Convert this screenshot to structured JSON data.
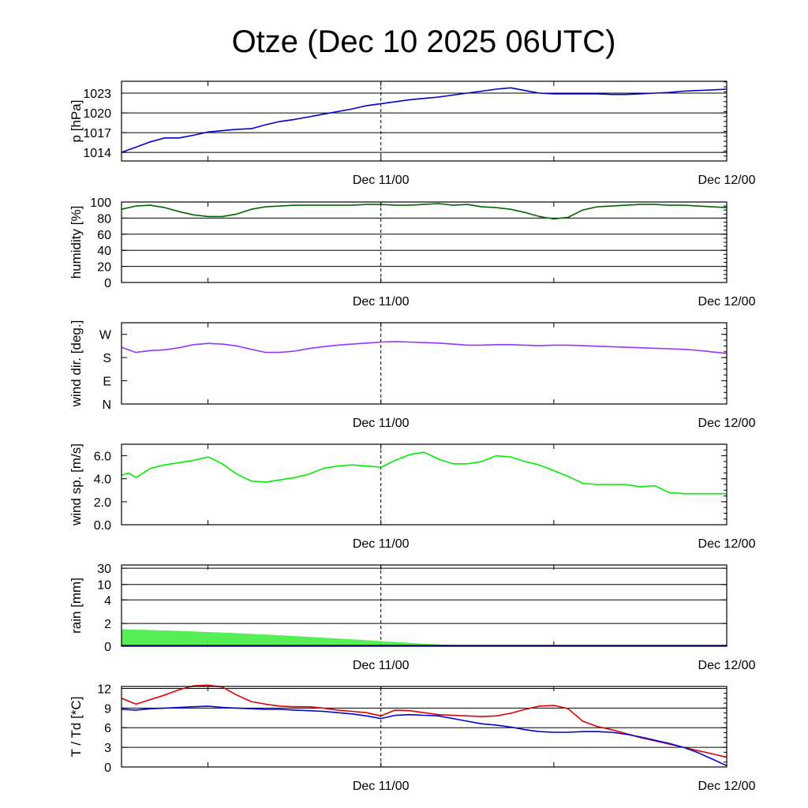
{
  "title": "Otze (Dec 10 2025 06UTC)",
  "x_axis": {
    "labels": [
      "Dec 11/00",
      "Dec 12/00"
    ],
    "start_hour": 6,
    "end_hour": 48,
    "label_hours": [
      24,
      48
    ],
    "minor_tick_hours": [
      12,
      36
    ]
  },
  "chart_data": [
    {
      "type": "line",
      "ylabel": "p [hPa]",
      "ylim": [
        1012.7,
        1024.8
      ],
      "ticks": [
        1014,
        1017,
        1020,
        1023
      ],
      "tick_labels": [
        "1014",
        "1017",
        "1020",
        "1023"
      ],
      "grid": true,
      "series": [
        {
          "color": "#0000cc",
          "x": [
            6,
            6.5,
            7,
            7.5,
            8,
            9,
            10,
            11,
            12,
            13,
            14,
            15,
            16,
            17,
            18,
            19,
            20,
            21,
            22,
            23,
            24,
            25,
            26,
            27,
            28,
            29,
            30,
            31,
            32,
            33,
            34,
            35,
            36,
            37,
            38,
            39,
            40,
            41,
            42,
            43,
            44,
            45,
            46,
            47,
            48
          ],
          "y": [
            1014.0,
            1014.4,
            1014.8,
            1015.2,
            1015.6,
            1016.2,
            1016.2,
            1016.6,
            1017.1,
            1017.3,
            1017.5,
            1017.6,
            1018.2,
            1018.7,
            1019.0,
            1019.4,
            1019.8,
            1020.2,
            1020.6,
            1021.1,
            1021.4,
            1021.7,
            1022.0,
            1022.2,
            1022.4,
            1022.7,
            1023.0,
            1023.3,
            1023.6,
            1023.8,
            1023.4,
            1023.0,
            1022.9,
            1022.9,
            1022.9,
            1022.9,
            1022.8,
            1022.8,
            1022.9,
            1023.0,
            1023.1,
            1023.3,
            1023.4,
            1023.5,
            1023.6
          ]
        }
      ]
    },
    {
      "type": "line",
      "ylabel": "humidity [%]",
      "ylim": [
        0,
        100
      ],
      "ticks": [
        0,
        20,
        40,
        60,
        80,
        100
      ],
      "tick_labels": [
        "0",
        "20",
        "40",
        "60",
        "80",
        "100"
      ],
      "grid": true,
      "series": [
        {
          "color": "#006600",
          "x": [
            6,
            7,
            8,
            9,
            10,
            11,
            12,
            13,
            14,
            15,
            16,
            17,
            18,
            19,
            20,
            21,
            22,
            23,
            24,
            25,
            26,
            27,
            28,
            29,
            30,
            31,
            32,
            33,
            34,
            35,
            36,
            37,
            38,
            39,
            40,
            41,
            42,
            43,
            44,
            45,
            46,
            47,
            48
          ],
          "y": [
            91,
            95,
            96,
            93,
            88,
            84,
            82,
            82,
            85,
            91,
            94,
            95,
            96,
            96,
            96,
            96,
            96,
            97,
            97,
            96,
            96,
            97,
            98,
            96,
            97,
            94,
            93,
            91,
            87,
            82,
            79,
            81,
            90,
            94,
            95,
            96,
            97,
            97,
            96,
            96,
            95,
            94,
            93
          ]
        }
      ]
    },
    {
      "type": "line",
      "ylabel": "wind dir. [deg.]",
      "ylim": [
        0,
        315
      ],
      "ticks": [
        0,
        90,
        180,
        270
      ],
      "tick_labels": [
        "N",
        "E",
        "S",
        "W"
      ],
      "grid": false,
      "series": [
        {
          "color": "#9933ff",
          "x": [
            6,
            7,
            8,
            9,
            10,
            11,
            12,
            13,
            14,
            15,
            16,
            17,
            18,
            19,
            20,
            21,
            22,
            23,
            24,
            25,
            26,
            27,
            28,
            29,
            30,
            31,
            32,
            33,
            34,
            35,
            36,
            37,
            38,
            39,
            40,
            41,
            42,
            43,
            44,
            45,
            46,
            47,
            48
          ],
          "y": [
            220,
            200,
            207,
            210,
            218,
            230,
            235,
            232,
            225,
            212,
            200,
            200,
            205,
            215,
            222,
            228,
            232,
            236,
            240,
            242,
            240,
            238,
            236,
            232,
            228,
            228,
            230,
            230,
            228,
            226,
            228,
            228,
            226,
            224,
            222,
            220,
            218,
            216,
            214,
            212,
            208,
            202,
            196
          ]
        }
      ]
    },
    {
      "type": "line",
      "ylabel": "wind sp. [m/s]",
      "ylim": [
        0,
        7
      ],
      "ticks": [
        0,
        2,
        4,
        6
      ],
      "tick_labels": [
        "0.0",
        "2.0",
        "4.0",
        "6.0"
      ],
      "grid": false,
      "series": [
        {
          "color": "#00ee00",
          "x": [
            6,
            6.5,
            7,
            8,
            9,
            10,
            11,
            12,
            13,
            14,
            15,
            16,
            17,
            18,
            19,
            20,
            21,
            22,
            23,
            24,
            25,
            26,
            27,
            28,
            29,
            30,
            31,
            32,
            33,
            34,
            35,
            36,
            37,
            38,
            39,
            40,
            41,
            42,
            43,
            44,
            45,
            46,
            47,
            48
          ],
          "y": [
            4.3,
            4.5,
            4.1,
            4.9,
            5.2,
            5.4,
            5.6,
            5.9,
            5.3,
            4.4,
            3.8,
            3.7,
            3.9,
            4.1,
            4.4,
            4.9,
            5.1,
            5.2,
            5.1,
            5.0,
            5.6,
            6.1,
            6.3,
            5.7,
            5.3,
            5.3,
            5.5,
            6.0,
            5.9,
            5.5,
            5.2,
            4.7,
            4.2,
            3.6,
            3.5,
            3.5,
            3.5,
            3.3,
            3.4,
            2.8,
            2.7,
            2.7,
            2.7,
            2.7
          ]
        }
      ]
    },
    {
      "type": "area",
      "ylabel": "rain [mm]",
      "scale": "nonlinear",
      "ticks": [
        0,
        2,
        4,
        10,
        30
      ],
      "tick_labels": [
        "0",
        "2",
        "4",
        "10",
        "30"
      ],
      "grid": true,
      "series": [
        {
          "color": "#44ee44",
          "x": [
            6,
            10,
            14,
            18,
            22,
            24,
            26,
            28,
            30,
            32,
            36,
            40,
            44,
            48
          ],
          "y": [
            1.5,
            1.35,
            1.15,
            0.9,
            0.6,
            0.45,
            0.3,
            0.15,
            0.05,
            0.0,
            0.0,
            0.0,
            0.0,
            0.0
          ]
        }
      ]
    },
    {
      "type": "line",
      "ylabel": "T / Td [*C]",
      "ylim": [
        0,
        12.3
      ],
      "ticks": [
        0,
        3,
        6,
        9,
        12
      ],
      "tick_labels": [
        "0",
        "3",
        "6",
        "9",
        "12"
      ],
      "grid": true,
      "series": [
        {
          "color": "#dd0000",
          "x": [
            6,
            7,
            8,
            9,
            10,
            11,
            12,
            13,
            14,
            15,
            16,
            17,
            18,
            19,
            20,
            21,
            22,
            23,
            24,
            25,
            26,
            27,
            28,
            29,
            30,
            31,
            32,
            33,
            34,
            35,
            36,
            37,
            38,
            39,
            40,
            41,
            42,
            43,
            44,
            45,
            46,
            47,
            48
          ],
          "y": [
            10.5,
            9.6,
            10.3,
            11.0,
            11.8,
            12.4,
            12.5,
            12.2,
            11.0,
            10.0,
            9.6,
            9.3,
            9.2,
            9.2,
            9.0,
            8.7,
            8.5,
            8.3,
            7.8,
            8.7,
            8.6,
            8.3,
            8.0,
            7.9,
            7.8,
            7.7,
            7.8,
            8.2,
            8.8,
            9.3,
            9.4,
            8.9,
            7.0,
            6.2,
            5.7,
            5.1,
            4.5,
            4.0,
            3.5,
            3.0,
            2.5,
            2.0,
            1.5
          ]
        },
        {
          "color": "#0000dd",
          "x": [
            6,
            7,
            8,
            9,
            10,
            11,
            12,
            13,
            14,
            15,
            16,
            17,
            18,
            19,
            20,
            21,
            22,
            23,
            24,
            25,
            26,
            27,
            28,
            29,
            30,
            31,
            32,
            33,
            34,
            35,
            36,
            37,
            38,
            39,
            40,
            41,
            42,
            43,
            44,
            45,
            46,
            47,
            48
          ],
          "y": [
            8.8,
            8.7,
            8.9,
            9.0,
            9.1,
            9.2,
            9.3,
            9.1,
            9.0,
            8.9,
            8.8,
            8.8,
            8.7,
            8.6,
            8.5,
            8.3,
            8.1,
            7.8,
            7.4,
            7.9,
            8.0,
            7.9,
            7.8,
            7.4,
            7.0,
            6.6,
            6.4,
            6.1,
            5.7,
            5.4,
            5.3,
            5.3,
            5.4,
            5.4,
            5.3,
            5.0,
            4.6,
            4.1,
            3.6,
            3.0,
            2.2,
            1.2,
            0.2
          ]
        }
      ]
    }
  ]
}
